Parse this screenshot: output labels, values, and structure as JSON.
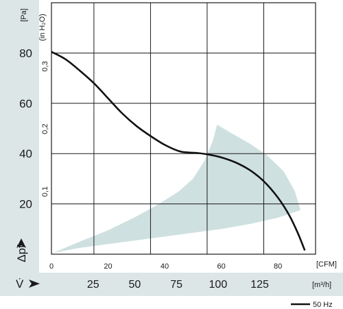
{
  "chart_data": {
    "type": "line",
    "x_axis": {
      "primary_unit": "[CFM]",
      "primary_ticks": [
        "0",
        "20",
        "40",
        "60",
        "80"
      ],
      "secondary_unit": "[m³/h]",
      "secondary_ticks": [
        "25",
        "50",
        "75",
        "100",
        "125"
      ],
      "xlim_cfm": [
        0,
        93.3
      ],
      "symbol": "V̇"
    },
    "y_axis": {
      "primary_unit": "[Pa]",
      "primary_ticks": [
        "20",
        "40",
        "60",
        "80"
      ],
      "secondary_unit": "(in H₂O)",
      "secondary_ticks": [
        "0,1",
        "0,2",
        "0,3"
      ],
      "ylim_pa": [
        0,
        100
      ],
      "symbol": "Δpf"
    },
    "grid": true,
    "legend_position": "bottom-right",
    "series": [
      {
        "name": "50 Hz",
        "color": "#111111",
        "points": [
          [
            0,
            80.5
          ],
          [
            5,
            77.5
          ],
          [
            10,
            73
          ],
          [
            15,
            68
          ],
          [
            20,
            62
          ],
          [
            25,
            56
          ],
          [
            30,
            51
          ],
          [
            35,
            47
          ],
          [
            40,
            43.5
          ],
          [
            45,
            41
          ],
          [
            48,
            40.5
          ],
          [
            52,
            40.2
          ],
          [
            56,
            39.5
          ],
          [
            60,
            38.5
          ],
          [
            65,
            36.5
          ],
          [
            70,
            33.5
          ],
          [
            75,
            29
          ],
          [
            80,
            22.5
          ],
          [
            84,
            15.5
          ],
          [
            87,
            8.5
          ],
          [
            89.5,
            1.5
          ]
        ]
      }
    ],
    "operating_region": {
      "color": "#cfe0e0",
      "points": [
        [
          0.5,
          0.5
        ],
        [
          10,
          2.5
        ],
        [
          20,
          4
        ],
        [
          30,
          5.5
        ],
        [
          40,
          7
        ],
        [
          50,
          8.5
        ],
        [
          60,
          10
        ],
        [
          70,
          12
        ],
        [
          80,
          14.5
        ],
        [
          88,
          17.5
        ],
        [
          86,
          25
        ],
        [
          82,
          33
        ],
        [
          76,
          39.5
        ],
        [
          70,
          44
        ],
        [
          63,
          48.5
        ],
        [
          58.5,
          51.5
        ],
        [
          57,
          45
        ],
        [
          54,
          37
        ],
        [
          50,
          30
        ],
        [
          45,
          25
        ],
        [
          38,
          20
        ],
        [
          30,
          15
        ],
        [
          20,
          9.5
        ],
        [
          10,
          5
        ],
        [
          0.5,
          0.5
        ]
      ]
    }
  },
  "legend": {
    "label": "50 Hz"
  }
}
